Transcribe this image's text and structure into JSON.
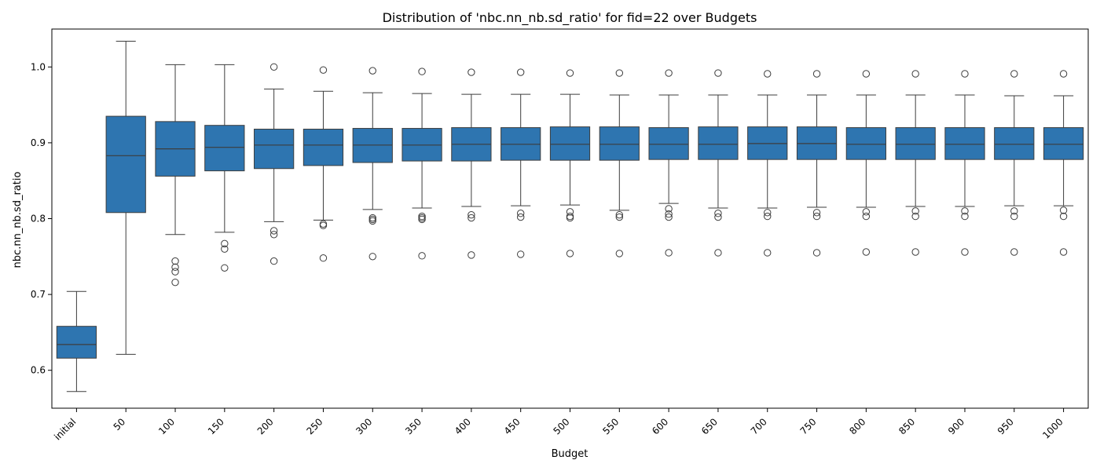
{
  "chart_data": {
    "type": "boxplot",
    "title": "Distribution of 'nbc.nn_nb.sd_ratio' for fid=22 over Budgets",
    "xlabel": "Budget",
    "ylabel": "nbc.nn_nb.sd_ratio",
    "ylim": [
      0.55,
      1.05
    ],
    "yticks": [
      0.6,
      0.7,
      0.8,
      0.9,
      1.0
    ],
    "ytick_labels": [
      "0.6",
      "0.7",
      "0.8",
      "0.9",
      "1.0"
    ],
    "grid": false,
    "box_color": "#2e75b0",
    "line_color": "#3d3d3d",
    "categories": [
      "initial",
      "50",
      "100",
      "150",
      "200",
      "250",
      "300",
      "350",
      "400",
      "450",
      "500",
      "550",
      "600",
      "650",
      "700",
      "750",
      "800",
      "850",
      "900",
      "950",
      "1000"
    ],
    "boxes": [
      {
        "whisker_low": 0.572,
        "q1": 0.616,
        "median": 0.634,
        "q3": 0.658,
        "whisker_high": 0.704,
        "outliers": []
      },
      {
        "whisker_low": 0.621,
        "q1": 0.808,
        "median": 0.883,
        "q3": 0.935,
        "whisker_high": 1.034,
        "outliers": []
      },
      {
        "whisker_low": 0.779,
        "q1": 0.856,
        "median": 0.892,
        "q3": 0.928,
        "whisker_high": 1.003,
        "outliers": [
          0.744,
          0.736,
          0.73,
          0.716
        ]
      },
      {
        "whisker_low": 0.782,
        "q1": 0.863,
        "median": 0.894,
        "q3": 0.923,
        "whisker_high": 1.003,
        "outliers": [
          0.767,
          0.76,
          0.735
        ]
      },
      {
        "whisker_low": 0.796,
        "q1": 0.866,
        "median": 0.897,
        "q3": 0.918,
        "whisker_high": 0.971,
        "outliers": [
          1.0,
          0.784,
          0.779,
          0.744
        ]
      },
      {
        "whisker_low": 0.798,
        "q1": 0.87,
        "median": 0.897,
        "q3": 0.918,
        "whisker_high": 0.968,
        "outliers": [
          0.996,
          0.793,
          0.791,
          0.748
        ]
      },
      {
        "whisker_low": 0.812,
        "q1": 0.874,
        "median": 0.897,
        "q3": 0.919,
        "whisker_high": 0.966,
        "outliers": [
          0.995,
          0.801,
          0.799,
          0.797,
          0.75
        ]
      },
      {
        "whisker_low": 0.814,
        "q1": 0.876,
        "median": 0.897,
        "q3": 0.919,
        "whisker_high": 0.965,
        "outliers": [
          0.994,
          0.803,
          0.801,
          0.799,
          0.751
        ]
      },
      {
        "whisker_low": 0.816,
        "q1": 0.876,
        "median": 0.898,
        "q3": 0.92,
        "whisker_high": 0.964,
        "outliers": [
          0.993,
          0.805,
          0.801,
          0.752
        ]
      },
      {
        "whisker_low": 0.817,
        "q1": 0.877,
        "median": 0.898,
        "q3": 0.92,
        "whisker_high": 0.964,
        "outliers": [
          0.993,
          0.807,
          0.802,
          0.753
        ]
      },
      {
        "whisker_low": 0.818,
        "q1": 0.877,
        "median": 0.898,
        "q3": 0.921,
        "whisker_high": 0.964,
        "outliers": [
          0.992,
          0.809,
          0.803,
          0.801,
          0.754
        ]
      },
      {
        "whisker_low": 0.811,
        "q1": 0.877,
        "median": 0.898,
        "q3": 0.921,
        "whisker_high": 0.963,
        "outliers": [
          0.992,
          0.805,
          0.802,
          0.754
        ]
      },
      {
        "whisker_low": 0.82,
        "q1": 0.878,
        "median": 0.898,
        "q3": 0.92,
        "whisker_high": 0.963,
        "outliers": [
          0.992,
          0.813,
          0.806,
          0.802,
          0.755
        ]
      },
      {
        "whisker_low": 0.814,
        "q1": 0.878,
        "median": 0.898,
        "q3": 0.921,
        "whisker_high": 0.963,
        "outliers": [
          0.992,
          0.807,
          0.802,
          0.755
        ]
      },
      {
        "whisker_low": 0.814,
        "q1": 0.878,
        "median": 0.899,
        "q3": 0.921,
        "whisker_high": 0.963,
        "outliers": [
          0.991,
          0.808,
          0.803,
          0.755
        ]
      },
      {
        "whisker_low": 0.815,
        "q1": 0.878,
        "median": 0.899,
        "q3": 0.921,
        "whisker_high": 0.963,
        "outliers": [
          0.991,
          0.808,
          0.803,
          0.755
        ]
      },
      {
        "whisker_low": 0.815,
        "q1": 0.878,
        "median": 0.898,
        "q3": 0.92,
        "whisker_high": 0.963,
        "outliers": [
          0.991,
          0.809,
          0.803,
          0.756
        ]
      },
      {
        "whisker_low": 0.816,
        "q1": 0.878,
        "median": 0.898,
        "q3": 0.92,
        "whisker_high": 0.963,
        "outliers": [
          0.991,
          0.81,
          0.803,
          0.756
        ]
      },
      {
        "whisker_low": 0.816,
        "q1": 0.878,
        "median": 0.898,
        "q3": 0.92,
        "whisker_high": 0.963,
        "outliers": [
          0.991,
          0.81,
          0.803,
          0.756
        ]
      },
      {
        "whisker_low": 0.817,
        "q1": 0.878,
        "median": 0.898,
        "q3": 0.92,
        "whisker_high": 0.962,
        "outliers": [
          0.991,
          0.81,
          0.803,
          0.756
        ]
      },
      {
        "whisker_low": 0.817,
        "q1": 0.878,
        "median": 0.898,
        "q3": 0.92,
        "whisker_high": 0.962,
        "outliers": [
          0.991,
          0.811,
          0.803,
          0.756
        ]
      }
    ]
  }
}
